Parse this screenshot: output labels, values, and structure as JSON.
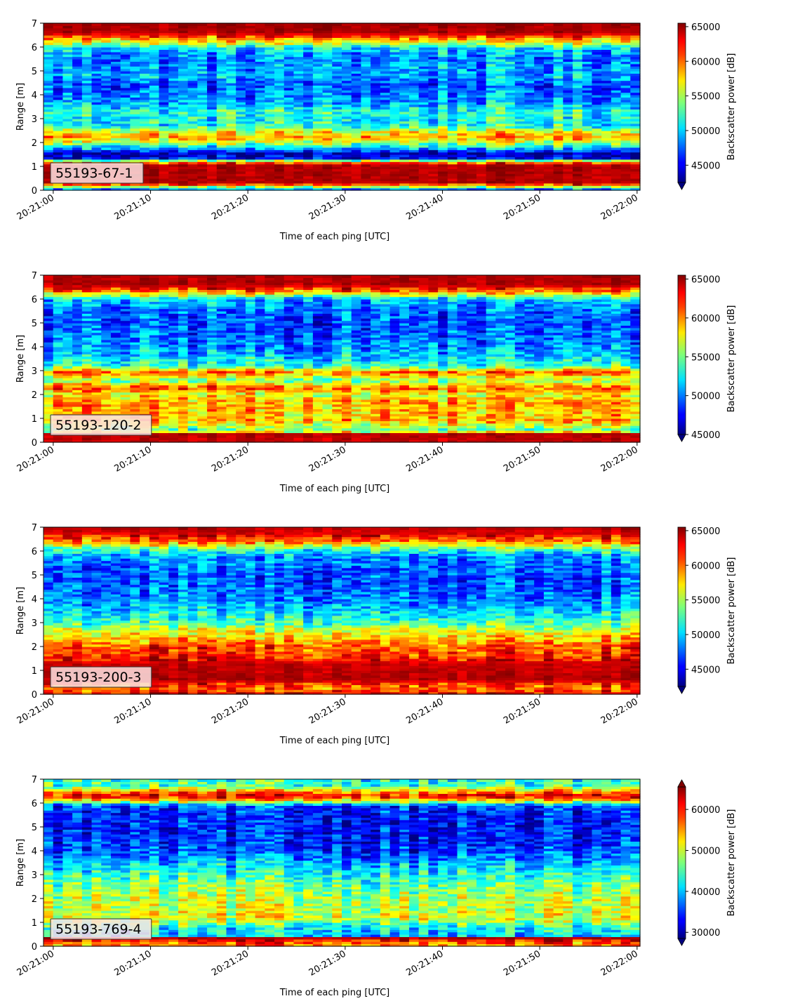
{
  "chart_data": [
    {
      "type": "heatmap",
      "label": "55193-67-1",
      "xlabel": "Time of each ping [UTC]",
      "ylabel": "Range [m]",
      "xticks": [
        "20:21:00",
        "20:21:10",
        "20:21:20",
        "20:21:30",
        "20:21:40",
        "20:21:50",
        "20:22:00"
      ],
      "x_range_seconds": [
        -1,
        60.3
      ],
      "y_range": [
        0,
        7
      ],
      "yticks": [
        0,
        1,
        2,
        3,
        4,
        5,
        6,
        7
      ],
      "colorbar": {
        "label": "Backscatter power [dB]",
        "ticks": [
          45000,
          50000,
          55000,
          60000,
          65000
        ],
        "range": [
          42500,
          65500
        ],
        "extend": "min"
      },
      "colormap": "jet",
      "profile": [
        [
          0.0,
          0.15
        ],
        [
          0.3,
          0.95
        ],
        [
          1.05,
          0.95
        ],
        [
          1.2,
          0.72
        ],
        [
          1.35,
          0.12
        ],
        [
          1.55,
          0.05
        ],
        [
          1.75,
          0.3
        ],
        [
          2.0,
          0.55
        ],
        [
          2.25,
          0.72
        ],
        [
          2.45,
          0.62
        ],
        [
          2.7,
          0.4
        ],
        [
          3.0,
          0.38
        ],
        [
          3.3,
          0.42
        ],
        [
          3.6,
          0.3
        ],
        [
          4.0,
          0.25
        ],
        [
          4.4,
          0.2
        ],
        [
          4.8,
          0.3
        ],
        [
          5.2,
          0.28
        ],
        [
          5.6,
          0.25
        ],
        [
          6.0,
          0.38
        ],
        [
          6.2,
          0.62
        ],
        [
          6.4,
          0.75
        ],
        [
          6.6,
          0.95
        ],
        [
          7.0,
          0.97
        ]
      ]
    },
    {
      "type": "heatmap",
      "label": "55193-120-2",
      "xlabel": "Time of each ping [UTC]",
      "ylabel": "Range [m]",
      "xticks": [
        "20:21:00",
        "20:21:10",
        "20:21:20",
        "20:21:30",
        "20:21:40",
        "20:21:50",
        "20:22:00"
      ],
      "x_range_seconds": [
        -1,
        60.3
      ],
      "y_range": [
        0,
        7
      ],
      "yticks": [
        0,
        1,
        2,
        3,
        4,
        5,
        6,
        7
      ],
      "colorbar": {
        "label": "Backscatter power [dB]",
        "ticks": [
          45000,
          50000,
          55000,
          60000,
          65000
        ],
        "range": [
          45000,
          65500
        ],
        "extend": "min"
      },
      "colormap": "jet",
      "profile": [
        [
          0.0,
          0.92
        ],
        [
          0.35,
          0.95
        ],
        [
          0.5,
          0.45
        ],
        [
          0.9,
          0.7
        ],
        [
          1.3,
          0.68
        ],
        [
          1.7,
          0.72
        ],
        [
          2.0,
          0.6
        ],
        [
          2.3,
          0.8
        ],
        [
          2.6,
          0.48
        ],
        [
          2.95,
          0.78
        ],
        [
          3.2,
          0.42
        ],
        [
          3.6,
          0.32
        ],
        [
          4.0,
          0.25
        ],
        [
          4.5,
          0.22
        ],
        [
          5.0,
          0.2
        ],
        [
          5.5,
          0.22
        ],
        [
          6.0,
          0.32
        ],
        [
          6.3,
          0.72
        ],
        [
          6.6,
          0.95
        ],
        [
          7.0,
          0.95
        ]
      ]
    },
    {
      "type": "heatmap",
      "label": "55193-200-3",
      "xlabel": "Time of each ping [UTC]",
      "ylabel": "Range [m]",
      "xticks": [
        "20:21:00",
        "20:21:10",
        "20:21:20",
        "20:21:30",
        "20:21:40",
        "20:21:50",
        "20:22:00"
      ],
      "x_range_seconds": [
        -1,
        60.3
      ],
      "y_range": [
        0,
        7
      ],
      "yticks": [
        0,
        1,
        2,
        3,
        4,
        5,
        6,
        7
      ],
      "colorbar": {
        "label": "Backscatter power [dB]",
        "ticks": [
          45000,
          50000,
          55000,
          60000,
          65000
        ],
        "range": [
          42500,
          65500
        ],
        "extend": "min"
      },
      "colormap": "jet",
      "profile": [
        [
          0.0,
          0.9
        ],
        [
          0.3,
          0.75
        ],
        [
          0.6,
          0.95
        ],
        [
          1.3,
          0.93
        ],
        [
          1.6,
          0.82
        ],
        [
          2.0,
          0.8
        ],
        [
          2.3,
          0.7
        ],
        [
          2.7,
          0.58
        ],
        [
          3.0,
          0.45
        ],
        [
          3.4,
          0.35
        ],
        [
          3.8,
          0.28
        ],
        [
          4.3,
          0.22
        ],
        [
          4.8,
          0.2
        ],
        [
          5.3,
          0.22
        ],
        [
          5.8,
          0.28
        ],
        [
          6.1,
          0.45
        ],
        [
          6.4,
          0.75
        ],
        [
          6.7,
          0.9
        ],
        [
          7.0,
          0.95
        ]
      ]
    },
    {
      "type": "heatmap",
      "label": "55193-769-4",
      "xlabel": "Time of each ping [UTC]",
      "ylabel": "Range [m]",
      "xticks": [
        "20:21:00",
        "20:21:10",
        "20:21:20",
        "20:21:30",
        "20:21:40",
        "20:21:50",
        "20:22:00"
      ],
      "x_range_seconds": [
        -1,
        60.3
      ],
      "y_range": [
        0,
        7
      ],
      "yticks": [
        0,
        1,
        2,
        3,
        4,
        5,
        6,
        7
      ],
      "colorbar": {
        "label": "Backscatter power [dB]",
        "ticks": [
          30000,
          40000,
          50000,
          60000
        ],
        "range": [
          28500,
          65500
        ],
        "extend": "both"
      },
      "colormap": "jet",
      "profile": [
        [
          0.0,
          0.72
        ],
        [
          0.2,
          0.8
        ],
        [
          0.35,
          0.95
        ],
        [
          0.45,
          0.3
        ],
        [
          0.8,
          0.38
        ],
        [
          1.2,
          0.6
        ],
        [
          1.6,
          0.55
        ],
        [
          2.0,
          0.55
        ],
        [
          2.5,
          0.5
        ],
        [
          3.0,
          0.4
        ],
        [
          3.5,
          0.3
        ],
        [
          4.0,
          0.18
        ],
        [
          4.5,
          0.15
        ],
        [
          5.0,
          0.13
        ],
        [
          5.5,
          0.14
        ],
        [
          5.9,
          0.2
        ],
        [
          6.1,
          0.62
        ],
        [
          6.3,
          0.9
        ],
        [
          6.5,
          0.72
        ],
        [
          6.7,
          0.45
        ],
        [
          7.0,
          0.4
        ]
      ]
    }
  ]
}
